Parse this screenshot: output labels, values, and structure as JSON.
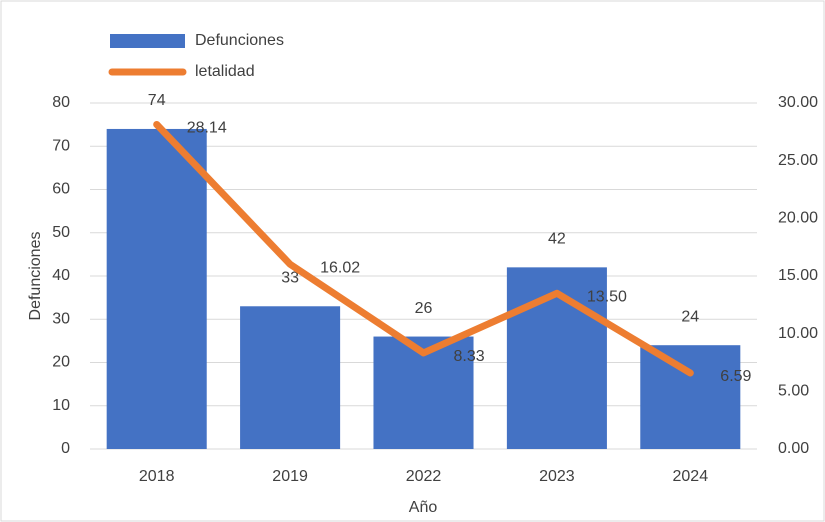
{
  "chart_data": {
    "type": "bar",
    "categories": [
      "2018",
      "2019",
      "2022",
      "2023",
      "2024"
    ],
    "series": [
      {
        "name": "Defunciones",
        "type": "bar",
        "color": "#4472c4",
        "values": [
          74,
          33,
          26,
          42,
          24
        ]
      },
      {
        "name": "letalidad",
        "type": "line",
        "axis": "y2",
        "color": "#ed7d31",
        "values": [
          28.14,
          16.02,
          8.33,
          13.5,
          6.59
        ],
        "value_labels": [
          "28.14",
          "16.02",
          "8.33",
          "13.50",
          "6.59"
        ]
      }
    ],
    "y_label": "Defunciones",
    "x_label": "Año",
    "ylim": [
      0,
      80
    ],
    "yticks": [
      0,
      10,
      20,
      30,
      40,
      50,
      60,
      70,
      80
    ],
    "y2lim": [
      0,
      30
    ],
    "y2ticks": [
      {
        "value": 0,
        "label": "0.00"
      },
      {
        "value": 5,
        "label": "5.00"
      },
      {
        "value": 10,
        "label": "10.00"
      },
      {
        "value": 15,
        "label": "15.00"
      },
      {
        "value": 20,
        "label": "20.00"
      },
      {
        "value": 25,
        "label": "25.00"
      },
      {
        "value": 30,
        "label": "30.00"
      }
    ],
    "grid": true,
    "legend": "top-left"
  }
}
